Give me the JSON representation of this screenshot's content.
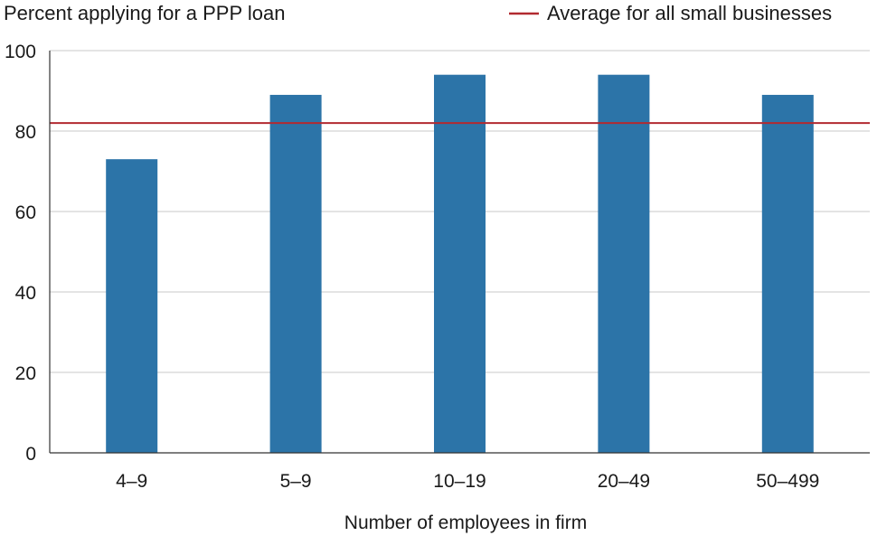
{
  "chart_data": {
    "type": "bar",
    "title": "",
    "ylabel": "Percent applying for a PPP loan",
    "xlabel": "Number of employees in firm",
    "categories": [
      "4–9",
      "5–9",
      "10–19",
      "20–49",
      "50–499"
    ],
    "values": [
      73,
      89,
      94,
      94,
      89
    ],
    "ylim": [
      0,
      100
    ],
    "yticks": [
      0,
      20,
      40,
      60,
      80,
      100
    ],
    "grid": true,
    "legend_placement": "top-right",
    "reference_line": {
      "label": "Average for all small businesses",
      "value": 82
    },
    "colors": {
      "bar": "#2c74a8",
      "reference_line": "#b22a30",
      "grid": "#c8c8c8",
      "axis": "#333333"
    }
  }
}
